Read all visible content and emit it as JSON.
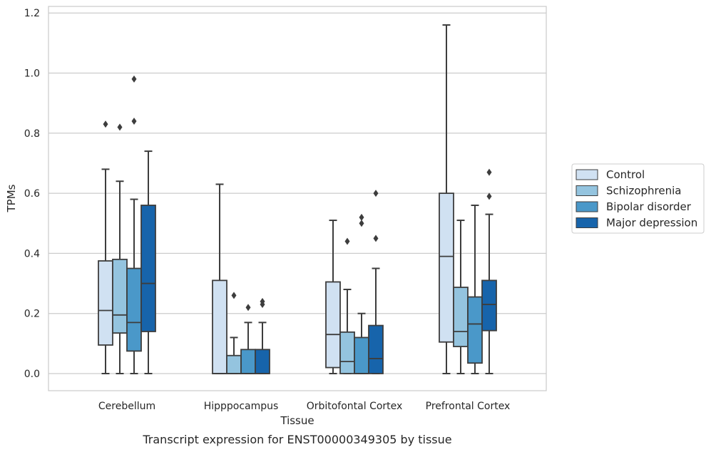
{
  "chart_data": {
    "type": "box",
    "xlabel": "Tissue",
    "ylabel": "TPMs",
    "caption": "Transcript expression for ENST00000349305 by tissue",
    "ylim": [
      -0.056,
      1.222
    ],
    "yticks": [
      0.0,
      0.2,
      0.4,
      0.6,
      0.8,
      1.0,
      1.2
    ],
    "ytick_labels": [
      "0.0",
      "0.2",
      "0.4",
      "0.6",
      "0.8",
      "1.0",
      "1.2"
    ],
    "grid": "horizontal",
    "legend_position": "right",
    "categories": [
      "Cerebellum",
      "Hipppocampus",
      "Orbitofontal Cortex",
      "Prefrontal Cortex"
    ],
    "series": [
      {
        "name": "Control",
        "color": "#d0e1f2",
        "boxes": [
          {
            "whisker_low": 0.0,
            "q1": 0.095,
            "median": 0.21,
            "q3": 0.375,
            "whisker_high": 0.68,
            "outliers": [
              0.83
            ]
          },
          {
            "whisker_low": 0.0,
            "q1": 0.0,
            "median": 0.0,
            "q3": 0.31,
            "whisker_high": 0.63,
            "outliers": []
          },
          {
            "whisker_low": 0.0,
            "q1": 0.02,
            "median": 0.13,
            "q3": 0.305,
            "whisker_high": 0.51,
            "outliers": []
          },
          {
            "whisker_low": 0.0,
            "q1": 0.105,
            "median": 0.39,
            "q3": 0.6,
            "whisker_high": 1.16,
            "outliers": []
          }
        ]
      },
      {
        "name": "Schizophrenia",
        "color": "#94c4df",
        "boxes": [
          {
            "whisker_low": 0.0,
            "q1": 0.135,
            "median": 0.195,
            "q3": 0.38,
            "whisker_high": 0.64,
            "outliers": [
              0.82
            ]
          },
          {
            "whisker_low": 0.0,
            "q1": 0.0,
            "median": 0.0,
            "q3": 0.06,
            "whisker_high": 0.12,
            "outliers": [
              0.26
            ]
          },
          {
            "whisker_low": 0.0,
            "q1": 0.0,
            "median": 0.04,
            "q3": 0.138,
            "whisker_high": 0.28,
            "outliers": [
              0.44
            ]
          },
          {
            "whisker_low": 0.0,
            "q1": 0.09,
            "median": 0.14,
            "q3": 0.287,
            "whisker_high": 0.51,
            "outliers": []
          }
        ]
      },
      {
        "name": "Bipolar disorder",
        "color": "#4a98c9",
        "boxes": [
          {
            "whisker_low": 0.0,
            "q1": 0.075,
            "median": 0.17,
            "q3": 0.35,
            "whisker_high": 0.58,
            "outliers": [
              0.84,
              0.98
            ]
          },
          {
            "whisker_low": 0.0,
            "q1": 0.0,
            "median": 0.0,
            "q3": 0.08,
            "whisker_high": 0.17,
            "outliers": [
              0.22
            ]
          },
          {
            "whisker_low": 0.0,
            "q1": 0.0,
            "median": 0.0,
            "q3": 0.12,
            "whisker_high": 0.2,
            "outliers": [
              0.5,
              0.52
            ]
          },
          {
            "whisker_low": 0.0,
            "q1": 0.035,
            "median": 0.165,
            "q3": 0.255,
            "whisker_high": 0.56,
            "outliers": []
          }
        ]
      },
      {
        "name": "Major depression",
        "color": "#1764ab",
        "boxes": [
          {
            "whisker_low": 0.0,
            "q1": 0.14,
            "median": 0.3,
            "q3": 0.56,
            "whisker_high": 0.74,
            "outliers": []
          },
          {
            "whisker_low": 0.0,
            "q1": 0.0,
            "median": 0.0,
            "q3": 0.08,
            "whisker_high": 0.17,
            "outliers": [
              0.23,
              0.24
            ]
          },
          {
            "whisker_low": 0.0,
            "q1": 0.0,
            "median": 0.05,
            "q3": 0.16,
            "whisker_high": 0.35,
            "outliers": [
              0.45,
              0.6
            ]
          },
          {
            "whisker_low": 0.0,
            "q1": 0.143,
            "median": 0.23,
            "q3": 0.31,
            "whisker_high": 0.53,
            "outliers": [
              0.59,
              0.67
            ]
          }
        ]
      }
    ]
  }
}
